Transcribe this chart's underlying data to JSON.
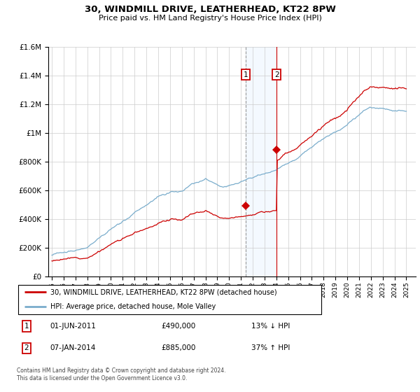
{
  "title": "30, WINDMILL DRIVE, LEATHERHEAD, KT22 8PW",
  "subtitle": "Price paid vs. HM Land Registry's House Price Index (HPI)",
  "legend_line1": "30, WINDMILL DRIVE, LEATHERHEAD, KT22 8PW (detached house)",
  "legend_line2": "HPI: Average price, detached house, Mole Valley",
  "annotation1_label": "1",
  "annotation1_date": "01-JUN-2011",
  "annotation1_price": "£490,000",
  "annotation1_hpi": "13% ↓ HPI",
  "annotation2_label": "2",
  "annotation2_date": "07-JAN-2014",
  "annotation2_price": "£885,000",
  "annotation2_hpi": "37% ↑ HPI",
  "footer": "Contains HM Land Registry data © Crown copyright and database right 2024.\nThis data is licensed under the Open Government Licence v3.0.",
  "line_color_red": "#cc0000",
  "line_color_blue": "#7aadcc",
  "highlight_color": "#ddeeff",
  "annotation_box_color": "#cc0000",
  "grid_color": "#cccccc",
  "ylim": [
    0,
    1600000
  ],
  "yticks": [
    0,
    200000,
    400000,
    600000,
    800000,
    1000000,
    1200000,
    1400000,
    1600000
  ],
  "sale1_year": 2011.42,
  "sale2_year": 2014.02,
  "sale1_price": 490000,
  "sale2_price": 885000
}
